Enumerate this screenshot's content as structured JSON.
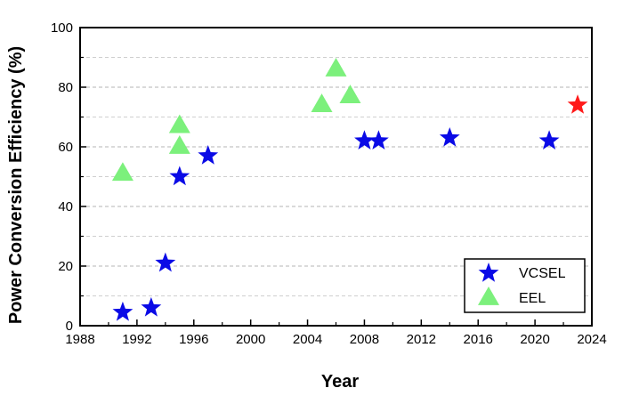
{
  "chart_data": {
    "type": "scatter",
    "xlabel": "Year",
    "ylabel": "Power Conversion Efficiency (%)",
    "xlim": [
      1988,
      2024
    ],
    "ylim": [
      0,
      100
    ],
    "xticks": [
      "1988",
      "1992",
      "1996",
      "2000",
      "2004",
      "2008",
      "2012",
      "2016",
      "2020",
      "2024"
    ],
    "yticks": [
      "0",
      "20",
      "40",
      "60",
      "80",
      "100"
    ],
    "grid": "horizontal dashed",
    "legend_position": "bottom-right",
    "series": [
      {
        "name": "VCSEL",
        "marker": "star",
        "color": "#0a0ae6",
        "points": [
          {
            "x": 1991,
            "y": 4.5
          },
          {
            "x": 1993,
            "y": 6
          },
          {
            "x": 1994,
            "y": 21
          },
          {
            "x": 1995,
            "y": 50
          },
          {
            "x": 1997,
            "y": 57
          },
          {
            "x": 2008,
            "y": 62
          },
          {
            "x": 2009,
            "y": 62
          },
          {
            "x": 2014,
            "y": 63
          },
          {
            "x": 2021,
            "y": 62
          }
        ]
      },
      {
        "name": "EEL",
        "marker": "triangle",
        "color": "#7cf07c",
        "points": [
          {
            "x": 1991,
            "y": 51
          },
          {
            "x": 1995,
            "y": 60
          },
          {
            "x": 1995,
            "y": 67
          },
          {
            "x": 2005,
            "y": 74
          },
          {
            "x": 2006,
            "y": 86
          },
          {
            "x": 2007,
            "y": 77
          }
        ]
      },
      {
        "marker": "star",
        "color": "#ff1a1a",
        "points": [
          {
            "x": 2023,
            "y": 74
          }
        ]
      }
    ]
  }
}
